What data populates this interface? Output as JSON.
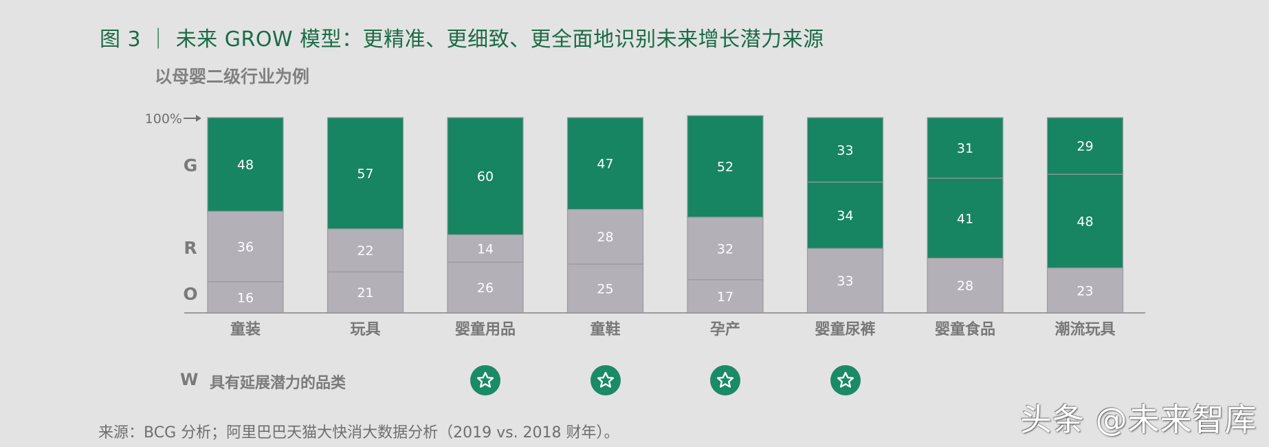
{
  "header": {
    "title": "图 3 ｜ 未来 GROW 模型：更精准、更细致、更全面地识别未来增长潜力来源",
    "subtitle": "以母婴二级行业为例"
  },
  "chart_data": {
    "type": "bar",
    "stacked": true,
    "categories": [
      "童装",
      "玩具",
      "婴童用品",
      "童鞋",
      "孕产",
      "婴童尿裤",
      "婴童食品",
      "潮流玩具"
    ],
    "series": [
      {
        "name": "O",
        "color": "#b3b0b8",
        "values": [
          16,
          21,
          26,
          25,
          17,
          33,
          28,
          23
        ]
      },
      {
        "name": "R",
        "color_by_category": [
          "#b3b0b8",
          "#b3b0b8",
          "#b3b0b8",
          "#b3b0b8",
          "#b3b0b8",
          "#178462",
          "#178462",
          "#178462"
        ],
        "values": [
          36,
          22,
          14,
          28,
          32,
          34,
          41,
          48
        ]
      },
      {
        "name": "G",
        "color": "#178462",
        "values": [
          48,
          57,
          60,
          47,
          52,
          33,
          31,
          29
        ]
      }
    ],
    "y_axis_labels": [
      "G",
      "R",
      "O"
    ],
    "top_marker": "100%",
    "ylim": [
      0,
      100
    ]
  },
  "w_row": {
    "letter": "W",
    "label": "具有延展潜力的品类",
    "starred": [
      false,
      false,
      true,
      true,
      true,
      true,
      false,
      false
    ],
    "icon": "star-icon"
  },
  "footer": {
    "source": "来源：BCG 分析；阿里巴巴天猫大快消大数据分析（2019 vs. 2018 财年）。"
  },
  "watermark": {
    "text": "头条 @未来智库"
  }
}
